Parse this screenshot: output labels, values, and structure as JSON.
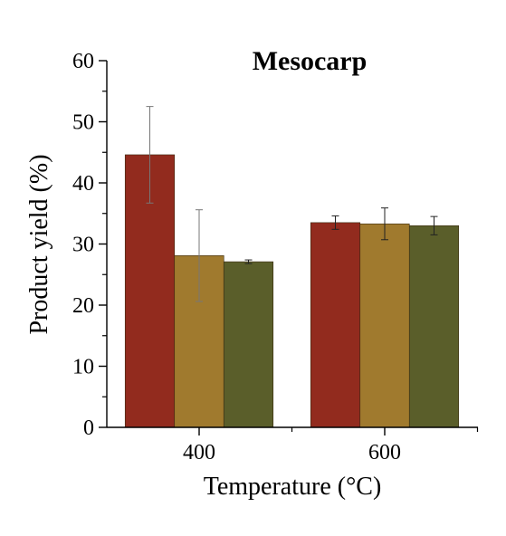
{
  "chart_data": {
    "type": "bar",
    "title": "Mesocarp",
    "xlabel": "Temperature (°C)",
    "ylabel": "Product yield (%)",
    "categories": [
      "400",
      "600"
    ],
    "ylim": [
      0,
      60
    ],
    "yticks": [
      0,
      10,
      20,
      30,
      40,
      50,
      60
    ],
    "grid": false,
    "legend": "none",
    "series": [
      {
        "color": "#922b1e",
        "values": [
          44.6,
          33.5
        ],
        "errors": [
          7.9,
          1.1
        ]
      },
      {
        "color": "#a07a2e",
        "values": [
          28.1,
          33.3
        ],
        "errors": [
          7.5,
          2.6
        ]
      },
      {
        "color": "#5a5e2a",
        "values": [
          27.1,
          33.0
        ],
        "errors": [
          0.3,
          1.5
        ]
      }
    ]
  }
}
